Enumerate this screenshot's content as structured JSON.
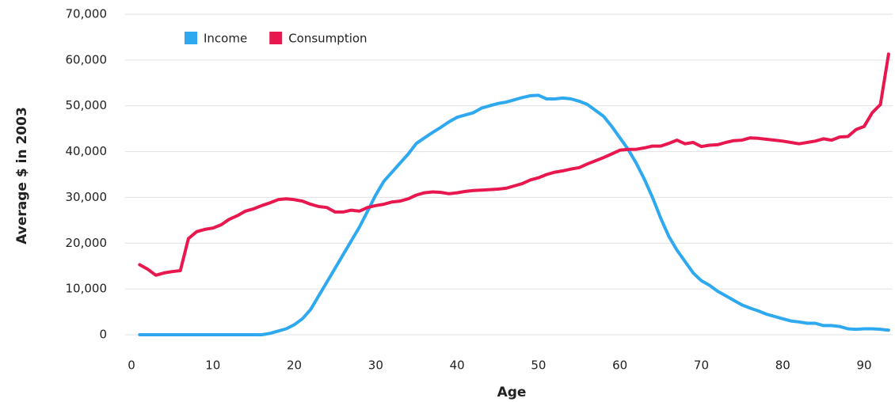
{
  "chart_data": {
    "type": "line",
    "x_label": "Age",
    "y_label": "Average $ in 2003",
    "x": [
      1,
      2,
      3,
      4,
      5,
      6,
      7,
      8,
      9,
      10,
      11,
      12,
      13,
      14,
      15,
      16,
      17,
      18,
      19,
      20,
      21,
      22,
      23,
      24,
      25,
      26,
      27,
      28,
      29,
      30,
      31,
      32,
      33,
      34,
      35,
      36,
      37,
      38,
      39,
      40,
      41,
      42,
      43,
      44,
      45,
      46,
      47,
      48,
      49,
      50,
      51,
      52,
      53,
      54,
      55,
      56,
      57,
      58,
      59,
      60,
      61,
      62,
      63,
      64,
      65,
      66,
      67,
      68,
      69,
      70,
      71,
      72,
      73,
      74,
      75,
      76,
      77,
      78,
      79,
      80,
      81,
      82,
      83,
      84,
      85,
      86,
      87,
      88,
      89,
      90,
      91,
      92,
      93
    ],
    "series": [
      {
        "name": "Income",
        "color": "#2ea9f0",
        "values": [
          0,
          0,
          0,
          0,
          0,
          0,
          0,
          0,
          0,
          0,
          0,
          0,
          0,
          0,
          0,
          0,
          300,
          800,
          1300,
          2200,
          3500,
          5500,
          8500,
          11500,
          14500,
          17500,
          20500,
          23500,
          27000,
          30500,
          33500,
          35500,
          37500,
          39500,
          41800,
          43000,
          44200,
          45300,
          46500,
          47500,
          48000,
          48500,
          49500,
          50000,
          50500,
          50800,
          51300,
          51800,
          52200,
          52300,
          51500,
          51500,
          51700,
          51500,
          51000,
          50300,
          49000,
          47700,
          45500,
          43000,
          40500,
          37500,
          34000,
          30000,
          25500,
          21500,
          18500,
          16000,
          13500,
          11800,
          10800,
          9500,
          8500,
          7500,
          6500,
          5800,
          5200,
          4500,
          4000,
          3500,
          3000,
          2800,
          2500,
          2500,
          2000,
          2000,
          1800,
          1300,
          1200,
          1300,
          1300,
          1200,
          1000
        ]
      },
      {
        "name": "Consumption",
        "color": "#e8174e",
        "values": [
          15300,
          14300,
          13000,
          13500,
          13800,
          14000,
          21000,
          22500,
          23000,
          23300,
          24000,
          25200,
          26000,
          27000,
          27500,
          28200,
          28800,
          29500,
          29700,
          29500,
          29200,
          28500,
          28000,
          27800,
          26800,
          26800,
          27200,
          27000,
          27800,
          28200,
          28500,
          29000,
          29200,
          29700,
          30500,
          31000,
          31200,
          31100,
          30800,
          31000,
          31300,
          31500,
          31600,
          31700,
          31800,
          32000,
          32500,
          33000,
          33800,
          34300,
          35000,
          35500,
          35800,
          36200,
          36500,
          37300,
          38000,
          38700,
          39500,
          40300,
          40500,
          40500,
          40800,
          41200,
          41200,
          41800,
          42500,
          41700,
          42000,
          41100,
          41400,
          41500,
          42000,
          42400,
          42500,
          43000,
          42900,
          42700,
          42500,
          42300,
          42000,
          41700,
          42000,
          42300,
          42800,
          42500,
          43200,
          43300,
          44800,
          45500,
          48500,
          50300,
          61300
        ]
      }
    ],
    "xlim": [
      0,
      93.5
    ],
    "xticks": [
      0,
      10,
      20,
      30,
      40,
      50,
      60,
      70,
      80,
      90
    ],
    "ylim": [
      0,
      70000
    ],
    "yticks": [
      0,
      {
        "value": 10000,
        "label": "10,000"
      },
      {
        "value": 20000,
        "label": "20,000"
      },
      {
        "value": 30000,
        "label": "30,000"
      },
      {
        "value": 40000,
        "label": "40,000"
      },
      {
        "value": 50000,
        "label": "50,000"
      },
      {
        "value": 60000,
        "label": "60,000"
      },
      {
        "value": 70000,
        "label": "70,000"
      }
    ],
    "grid": true,
    "legend": "top-left"
  }
}
